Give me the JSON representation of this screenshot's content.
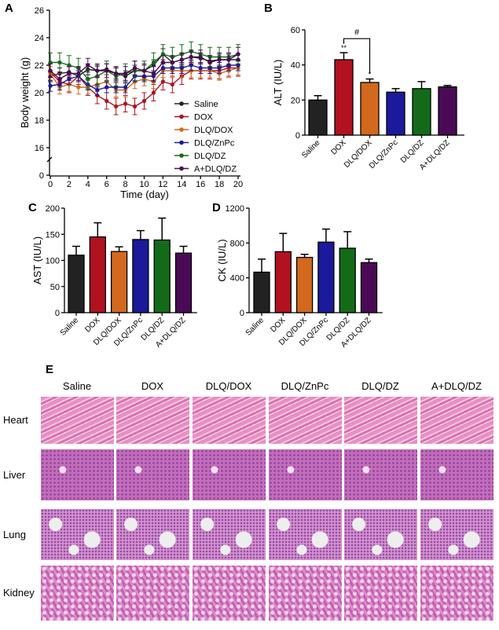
{
  "panels": {
    "a": "A",
    "b": "B",
    "c": "C",
    "d": "D",
    "e": "E"
  },
  "colors": {
    "Saline": "#222222",
    "DOX": "#b0121f",
    "DLQ/DOX": "#d2691e",
    "DLQ/ZnPc": "#1a1a9a",
    "DLQ/DZ": "#136b1a",
    "A+DLQ/DZ": "#4a0a55"
  },
  "chart_data": [
    {
      "type": "line",
      "xlabel": "Time (day)",
      "ylabel": "Body weight (g)",
      "xlim": [
        0,
        20
      ],
      "yticks": [
        0,
        16,
        18,
        20,
        22,
        24,
        26
      ],
      "xticks": [
        0,
        2,
        4,
        6,
        8,
        10,
        12,
        14,
        16,
        18,
        20
      ],
      "axis_break": "0-16",
      "legend": "bottom-right",
      "x": [
        0,
        1,
        2,
        3,
        4,
        5,
        6,
        7,
        8,
        9,
        10,
        11,
        12,
        13,
        14,
        15,
        16,
        17,
        18,
        19,
        20
      ],
      "series": [
        {
          "name": "Saline",
          "marker": "circle",
          "err": 0.4,
          "values": [
            21.2,
            21.4,
            21.5,
            21.2,
            21.7,
            21.6,
            21.7,
            21.4,
            21.2,
            21.6,
            21.6,
            22.0,
            22.8,
            22.2,
            22.4,
            22.6,
            22.5,
            22.3,
            22.4,
            22.4,
            22.4
          ]
        },
        {
          "name": "DOX",
          "marker": "square",
          "err": 0.6,
          "values": [
            21.5,
            20.8,
            20.6,
            21.2,
            20.4,
            19.8,
            19.4,
            19.0,
            19.2,
            19.0,
            19.4,
            20.0,
            20.8,
            20.6,
            21.2,
            21.6,
            21.6,
            21.6,
            21.6,
            21.8,
            21.8
          ]
        },
        {
          "name": "DLQ/DOX",
          "marker": "triangle-up",
          "err": 0.5,
          "values": [
            21.4,
            20.4,
            20.6,
            20.4,
            20.4,
            20.6,
            20.8,
            20.2,
            20.2,
            20.8,
            21.0,
            20.8,
            21.6,
            21.6,
            21.6,
            21.6,
            21.6,
            21.6,
            21.4,
            21.6,
            21.8
          ]
        },
        {
          "name": "DLQ/ZnPc",
          "marker": "triangle-down",
          "err": 0.4,
          "values": [
            20.5,
            20.6,
            21.0,
            21.2,
            20.6,
            20.2,
            20.4,
            20.4,
            20.4,
            21.2,
            21.2,
            21.2,
            21.8,
            21.8,
            21.8,
            22.0,
            21.8,
            21.8,
            21.8,
            22.0,
            22.0
          ]
        },
        {
          "name": "DLQ/DZ",
          "marker": "diamond",
          "err": 0.7,
          "values": [
            22.2,
            22.2,
            22.0,
            21.8,
            21.0,
            21.2,
            21.6,
            21.2,
            21.4,
            21.6,
            21.6,
            22.2,
            22.8,
            22.6,
            22.8,
            23.0,
            22.8,
            22.6,
            22.6,
            22.6,
            22.8
          ]
        },
        {
          "name": "A+DLQ/DZ",
          "marker": "hexagon",
          "err": 0.5,
          "values": [
            21.6,
            21.0,
            21.4,
            21.4,
            22.0,
            21.6,
            21.6,
            21.4,
            21.4,
            21.8,
            21.6,
            21.4,
            22.2,
            22.2,
            22.4,
            22.6,
            22.6,
            22.2,
            22.4,
            22.4,
            22.8
          ]
        }
      ]
    },
    {
      "type": "bar",
      "ylabel": "ALT (IU/L)",
      "ylim": [
        0,
        60
      ],
      "yticks": [
        0,
        20,
        40,
        60
      ],
      "categories": [
        "Saline",
        "DOX",
        "DLQ/DOX",
        "DLQ/ZnPc",
        "DLQ/DZ",
        "A+DLQ/DZ"
      ],
      "values": [
        20,
        43,
        30,
        24.5,
        26.5,
        27.5
      ],
      "errors": [
        2.5,
        4,
        2,
        2,
        4,
        0.8
      ],
      "annotations": {
        "DOX": "**",
        "DLQ/DOX": "*",
        "bracket": "#"
      }
    },
    {
      "type": "bar",
      "ylabel": "AST (IU/L)",
      "ylim": [
        0,
        200
      ],
      "yticks": [
        0,
        50,
        100,
        150,
        200
      ],
      "categories": [
        "Saline",
        "DOX",
        "DLQ/DOX",
        "DLQ/ZnPc",
        "DLQ/DZ",
        "A+DLQ/DZ"
      ],
      "values": [
        110,
        145,
        117,
        140,
        139,
        114
      ],
      "errors": [
        17,
        27,
        9,
        17,
        42,
        13
      ]
    },
    {
      "type": "bar",
      "ylabel": "CK (IU/L)",
      "ylim": [
        0,
        1200
      ],
      "yticks": [
        0,
        400,
        800,
        1200
      ],
      "categories": [
        "Saline",
        "DOX",
        "DLQ/DOX",
        "DLQ/ZnPc",
        "DLQ/DZ",
        "A+DLQ/DZ"
      ],
      "values": [
        465,
        700,
        635,
        810,
        740,
        575
      ],
      "errors": [
        150,
        210,
        35,
        150,
        190,
        40
      ]
    }
  ],
  "histology": {
    "columns": [
      "Saline",
      "DOX",
      "DLQ/DOX",
      "DLQ/ZnPc",
      "DLQ/DZ",
      "A+DLQ/DZ"
    ],
    "rows": [
      "Heart",
      "Liver",
      "Lung",
      "Kidney"
    ]
  }
}
